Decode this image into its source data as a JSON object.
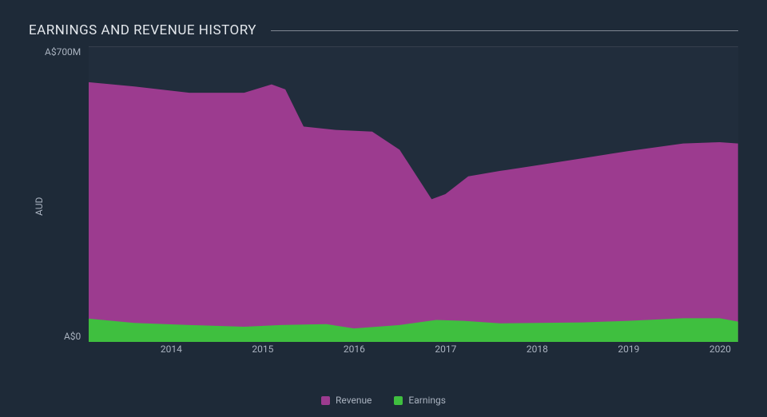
{
  "chart": {
    "type": "area",
    "title": "EARNINGS AND REVENUE HISTORY",
    "background_color": "#1e2a38",
    "plot_background_color": "#212d3c",
    "title_color": "#e3e7ec",
    "title_fontsize": 17,
    "label_color": "#a9b2bf",
    "grid_color": "#4a5461",
    "title_rule_color": "#808792",
    "yaxis_label": "AUD",
    "currency_prefix": "A$",
    "y_ticks": [
      {
        "value": 700,
        "label": "A$700M"
      },
      {
        "value": 0,
        "label": "A$0"
      }
    ],
    "ylim": [
      0,
      700
    ],
    "x_ticks": [
      2014,
      2015,
      2016,
      2017,
      2018,
      2019,
      2020
    ],
    "xlim": [
      2013.1,
      2020.2
    ],
    "label_fontsize": 12,
    "series": [
      {
        "name": "Revenue",
        "color": "#9c3b8f",
        "data": [
          {
            "x": 2013.1,
            "y": 615
          },
          {
            "x": 2013.6,
            "y": 605
          },
          {
            "x": 2014.2,
            "y": 590
          },
          {
            "x": 2014.8,
            "y": 590
          },
          {
            "x": 2015.1,
            "y": 610
          },
          {
            "x": 2015.25,
            "y": 598
          },
          {
            "x": 2015.45,
            "y": 510
          },
          {
            "x": 2015.8,
            "y": 502
          },
          {
            "x": 2016.2,
            "y": 498
          },
          {
            "x": 2016.5,
            "y": 455
          },
          {
            "x": 2016.85,
            "y": 338
          },
          {
            "x": 2017.0,
            "y": 350
          },
          {
            "x": 2017.25,
            "y": 392
          },
          {
            "x": 2017.6,
            "y": 405
          },
          {
            "x": 2018.0,
            "y": 418
          },
          {
            "x": 2018.5,
            "y": 435
          },
          {
            "x": 2019.0,
            "y": 452
          },
          {
            "x": 2019.6,
            "y": 470
          },
          {
            "x": 2020.0,
            "y": 473
          },
          {
            "x": 2020.2,
            "y": 470
          }
        ]
      },
      {
        "name": "Earnings",
        "color": "#3fbf3f",
        "data": [
          {
            "x": 2013.1,
            "y": 55
          },
          {
            "x": 2013.6,
            "y": 45
          },
          {
            "x": 2014.2,
            "y": 40
          },
          {
            "x": 2014.8,
            "y": 36
          },
          {
            "x": 2015.2,
            "y": 40
          },
          {
            "x": 2015.7,
            "y": 42
          },
          {
            "x": 2016.0,
            "y": 32
          },
          {
            "x": 2016.5,
            "y": 40
          },
          {
            "x": 2016.9,
            "y": 52
          },
          {
            "x": 2017.2,
            "y": 50
          },
          {
            "x": 2017.6,
            "y": 44
          },
          {
            "x": 2018.0,
            "y": 45
          },
          {
            "x": 2018.5,
            "y": 46
          },
          {
            "x": 2019.0,
            "y": 50
          },
          {
            "x": 2019.6,
            "y": 56
          },
          {
            "x": 2020.0,
            "y": 56
          },
          {
            "x": 2020.2,
            "y": 48
          }
        ]
      }
    ],
    "legend_position": "bottom-center"
  }
}
